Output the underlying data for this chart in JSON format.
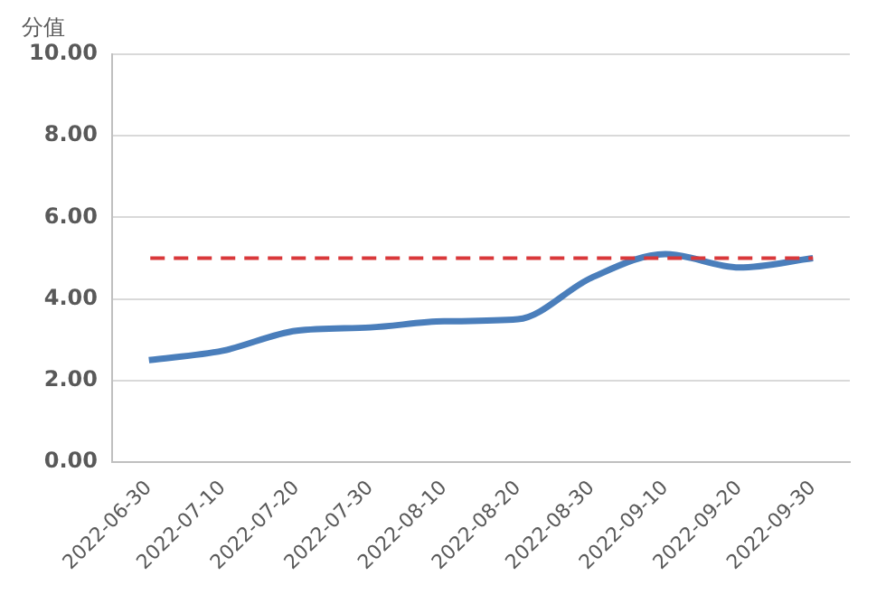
{
  "chart_data": {
    "type": "line",
    "ylabel": "分值",
    "categories": [
      "2022-06-30",
      "2022-07-10",
      "2022-07-20",
      "2022-07-30",
      "2022-08-10",
      "2022-08-20",
      "2022-08-30",
      "2022-09-10",
      "2022-09-20",
      "2022-09-30"
    ],
    "series": [
      {
        "color": "#4a7ebb",
        "values": [
          2.5,
          2.73,
          3.22,
          3.3,
          3.45,
          3.5,
          4.52,
          5.1,
          4.77,
          5.0
        ],
        "line_style": "solid"
      },
      {
        "color": "#d9383a",
        "values": [
          5,
          5,
          5,
          5,
          5,
          5,
          5,
          5,
          5,
          5
        ],
        "line_style": "dashed"
      }
    ],
    "ylim": [
      0,
      10
    ],
    "yticks": [
      {
        "value": 0,
        "label": "0.00"
      },
      {
        "value": 2,
        "label": "2.00"
      },
      {
        "value": 4,
        "label": "4.00"
      },
      {
        "value": 6,
        "label": "6.00"
      },
      {
        "value": 8,
        "label": "8.00"
      },
      {
        "value": 10,
        "label": "10.00"
      }
    ],
    "grid": "y",
    "legend": false,
    "marker": "none"
  }
}
